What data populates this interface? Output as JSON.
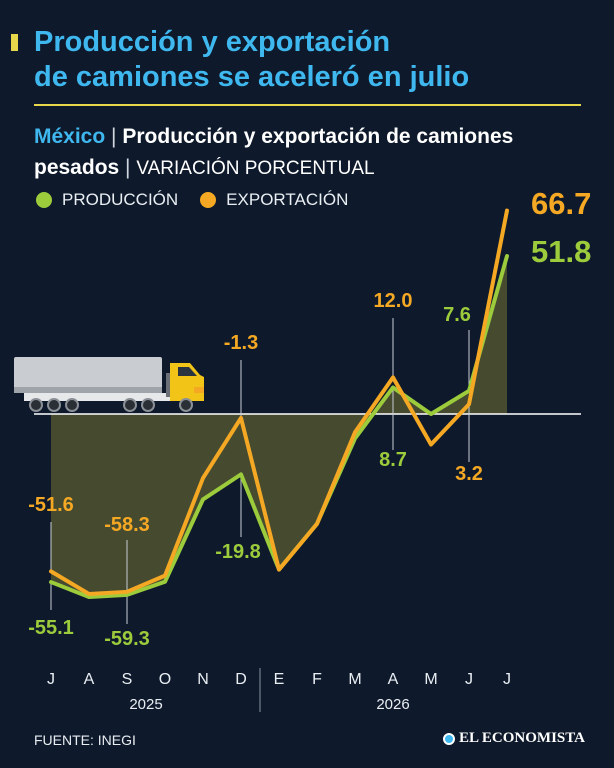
{
  "header": {
    "title_line1": "Producción y exportación",
    "title_line2": "de camiones se aceleró en julio"
  },
  "subtitle": {
    "country": "México",
    "separator": "|",
    "title_part1": "Producción y exportación de camiones",
    "title_part2": "pesados",
    "unit": "VARIACIÓN PORCENTUAL"
  },
  "colors": {
    "background": "#0e1a2b",
    "produccion": "#9ccc3c",
    "exportacion": "#f5a823",
    "headline": "#3fb8f0",
    "accent": "#e6d84a"
  },
  "chart_data": {
    "type": "line",
    "title": "Producción y exportación de camiones pesados",
    "ylabel": "VARIACIÓN PORCENTUAL",
    "categories": [
      "J",
      "A",
      "S",
      "O",
      "N",
      "D",
      "E",
      "F",
      "M",
      "A",
      "M",
      "J",
      "J"
    ],
    "years": [
      {
        "label": "2025",
        "from": 0,
        "to": 5
      },
      {
        "label": "2026",
        "from": 6,
        "to": 12
      }
    ],
    "series": [
      {
        "name": "PRODUCCIÓN",
        "color": "#9ccc3c",
        "values": [
          -55.1,
          -60.0,
          -59.3,
          -55.0,
          -28.0,
          -19.8,
          -51.0,
          -36.0,
          -8.0,
          8.7,
          0.0,
          7.6,
          51.8
        ]
      },
      {
        "name": "EXPORTACIÓN",
        "color": "#f5a823",
        "values": [
          -51.6,
          -59.0,
          -58.3,
          -53.0,
          -21.0,
          -1.3,
          -51.0,
          -36.0,
          -6.0,
          12.0,
          -10.0,
          3.2,
          66.7
        ]
      }
    ],
    "labels": [
      {
        "series": 1,
        "index": 0,
        "text": "-51.6"
      },
      {
        "series": 0,
        "index": 0,
        "text": "-55.1"
      },
      {
        "series": 1,
        "index": 2,
        "text": "-58.3"
      },
      {
        "series": 0,
        "index": 2,
        "text": "-59.3"
      },
      {
        "series": 0,
        "index": 5,
        "text": "-19.8"
      },
      {
        "series": 1,
        "index": 5,
        "text": "-1.3"
      },
      {
        "series": 1,
        "index": 9,
        "text": "12.0"
      },
      {
        "series": 0,
        "index": 9,
        "text": "8.7"
      },
      {
        "series": 0,
        "index": 11,
        "text": "7.6"
      },
      {
        "series": 1,
        "index": 11,
        "text": "3.2"
      },
      {
        "series": 1,
        "index": 12,
        "text": "66.7"
      },
      {
        "series": 0,
        "index": 12,
        "text": "51.8"
      }
    ],
    "ylim": [
      -65,
      70
    ],
    "grid": false,
    "legend": "top-left"
  },
  "footer": {
    "source": "FUENTE: INEGI",
    "brand": "EL ECONOMISTA"
  }
}
